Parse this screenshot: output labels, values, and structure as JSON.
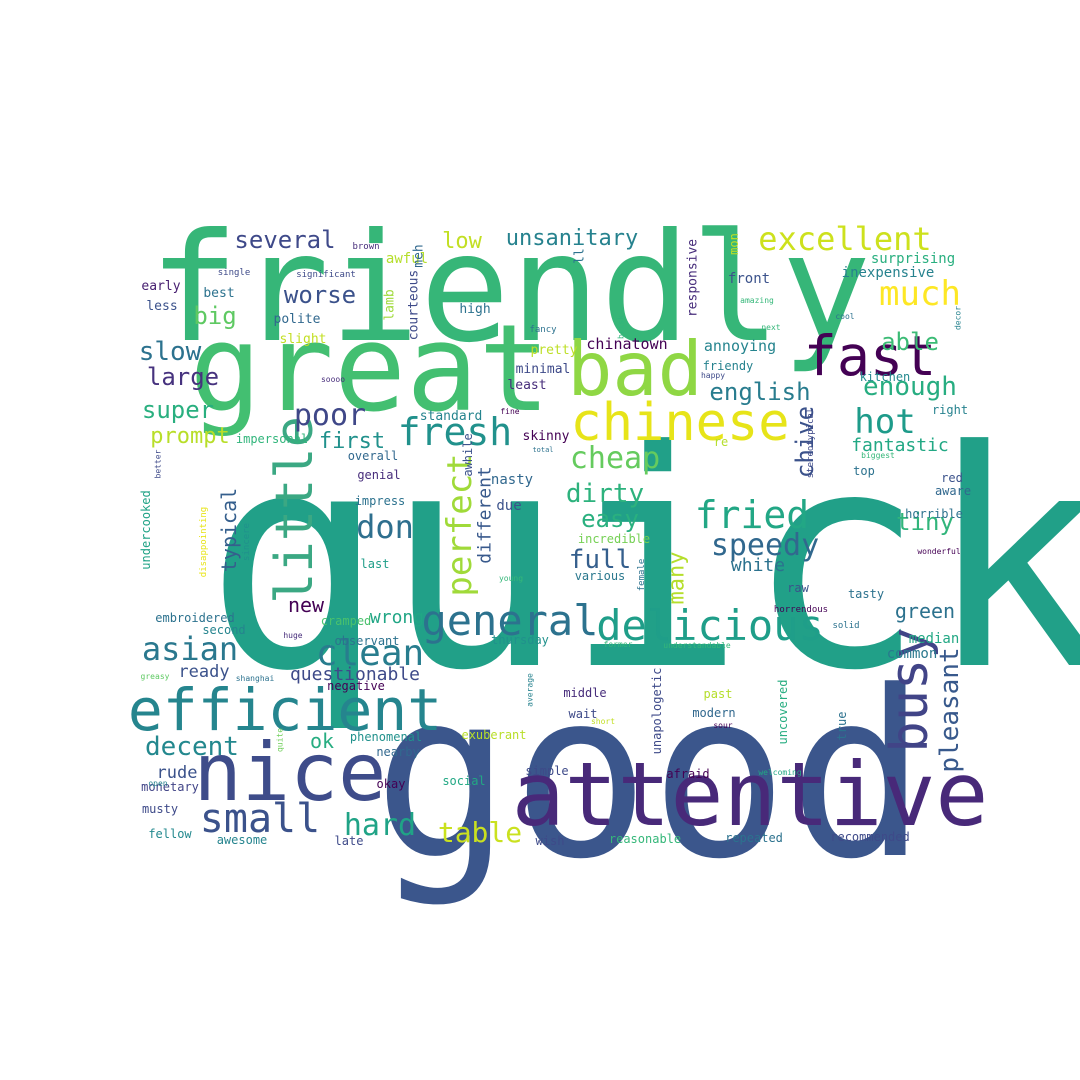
{
  "cloud": {
    "words": [
      {
        "text": "quick",
        "color": "#21a088"
      },
      {
        "text": "good",
        "color": "#3b568c"
      },
      {
        "text": "friendly",
        "color": "#36b678"
      },
      {
        "text": "great",
        "color": "#43bf71"
      },
      {
        "text": "attentive",
        "color": "#482979"
      },
      {
        "text": "nice",
        "color": "#3e4c8a"
      },
      {
        "text": "efficient",
        "color": "#25858e"
      },
      {
        "text": "bad",
        "color": "#8fd744"
      },
      {
        "text": "fast",
        "color": "#440154"
      },
      {
        "text": "chinese",
        "color": "#e7e419"
      },
      {
        "text": "delicious",
        "color": "#1f9e89"
      },
      {
        "text": "busy",
        "color": "#414487"
      },
      {
        "text": "excellent",
        "color": "#cde11d"
      },
      {
        "text": "much",
        "color": "#fde725"
      },
      {
        "text": "little",
        "color": "#3ba883"
      },
      {
        "text": "general",
        "color": "#2c728e"
      },
      {
        "text": "small",
        "color": "#3b528b"
      },
      {
        "text": "fried",
        "color": "#22a785"
      },
      {
        "text": "fresh",
        "color": "#21918c"
      },
      {
        "text": "speedy",
        "color": "#31688e"
      },
      {
        "text": "hot",
        "color": "#1e9b8a"
      },
      {
        "text": "clean",
        "color": "#287d8e"
      },
      {
        "text": "perfect",
        "color": "#a0da39"
      },
      {
        "text": "asian",
        "color": "#2a788e"
      },
      {
        "text": "poor",
        "color": "#3f4788"
      },
      {
        "text": "don",
        "color": "#2e6f8e"
      },
      {
        "text": "table",
        "color": "#cae11f"
      },
      {
        "text": "hard",
        "color": "#20a386"
      },
      {
        "text": "pleasant",
        "color": "#38598c"
      },
      {
        "text": "cheap",
        "color": "#65cb5e"
      },
      {
        "text": "dirty",
        "color": "#2db27d"
      },
      {
        "text": "full",
        "color": "#355f8d"
      },
      {
        "text": "easy",
        "color": "#2ab07f"
      },
      {
        "text": "decent",
        "color": "#23888e"
      },
      {
        "text": "enough",
        "color": "#27ad81"
      },
      {
        "text": "english",
        "color": "#287c8e"
      },
      {
        "text": "tiny",
        "color": "#31b57b"
      },
      {
        "text": "able",
        "color": "#3bbb75"
      },
      {
        "text": "slow",
        "color": "#2c728e"
      },
      {
        "text": "large",
        "color": "#46327e"
      },
      {
        "text": "super",
        "color": "#29af7f"
      },
      {
        "text": "prompt",
        "color": "#b8de29"
      },
      {
        "text": "worse",
        "color": "#3b528b"
      },
      {
        "text": "big",
        "color": "#5ec962"
      },
      {
        "text": "several",
        "color": "#3e4989"
      },
      {
        "text": "low",
        "color": "#c2df23"
      },
      {
        "text": "unsanitary",
        "color": "#26828e"
      },
      {
        "text": "first",
        "color": "#21918c"
      },
      {
        "text": "chive",
        "color": "#3b528b"
      },
      {
        "text": "fantastic",
        "color": "#22a884"
      },
      {
        "text": "new",
        "color": "#440154"
      },
      {
        "text": "green",
        "color": "#2c728e"
      },
      {
        "text": "ok",
        "color": "#27ad81"
      },
      {
        "text": "many",
        "color": "#b5de2b"
      },
      {
        "text": "questionable",
        "color": "#3e4a89"
      },
      {
        "text": "typical",
        "color": "#355f8d"
      },
      {
        "text": "different",
        "color": "#38598c"
      },
      {
        "text": "wrong",
        "color": "#21a685"
      },
      {
        "text": "white",
        "color": "#2c728e"
      },
      {
        "text": "ready",
        "color": "#3b528b"
      },
      {
        "text": "rude",
        "color": "#3b528b"
      },
      {
        "text": "common",
        "color": "#2a788e"
      },
      {
        "text": "median",
        "color": "#22a884"
      },
      {
        "text": "chinatown",
        "color": "#440154"
      },
      {
        "text": "annoying",
        "color": "#25848e"
      },
      {
        "text": "nasty",
        "color": "#31688e"
      },
      {
        "text": "due",
        "color": "#3b528b"
      },
      {
        "text": "surprising",
        "color": "#29af7f"
      },
      {
        "text": "inexpensive",
        "color": "#26828e"
      },
      {
        "text": "front",
        "color": "#3b528b"
      },
      {
        "text": "awful",
        "color": "#b5de2b"
      },
      {
        "text": "meh",
        "color": "#31688e"
      },
      {
        "text": "ll",
        "color": "#2c728e"
      },
      {
        "text": "mon",
        "color": "#c2df23"
      },
      {
        "text": "responsive",
        "color": "#472d7b"
      },
      {
        "text": "courteous",
        "color": "#3e4a89"
      },
      {
        "text": "lamb",
        "color": "#9fda3a"
      },
      {
        "text": "high",
        "color": "#2c728e"
      },
      {
        "text": "early",
        "color": "#482071"
      },
      {
        "text": "best",
        "color": "#2c728e"
      },
      {
        "text": "less",
        "color": "#3b528b"
      },
      {
        "text": "polite",
        "color": "#31688e"
      },
      {
        "text": "slight",
        "color": "#c2df23"
      },
      {
        "text": "pretty",
        "color": "#bddf26"
      },
      {
        "text": "minimal",
        "color": "#3e4a89"
      },
      {
        "text": "least",
        "color": "#472d7b"
      },
      {
        "text": "standard",
        "color": "#25848e"
      },
      {
        "text": "skinny",
        "color": "#440154"
      },
      {
        "text": "overall",
        "color": "#31688e"
      },
      {
        "text": "genial",
        "color": "#472d7b"
      },
      {
        "text": "impress",
        "color": "#2c728e"
      },
      {
        "text": "awhile",
        "color": "#3b528b"
      },
      {
        "text": "impersonal",
        "color": "#31b57b"
      },
      {
        "text": "friendy",
        "color": "#26828e"
      },
      {
        "text": "kitchen",
        "color": "#23898e"
      },
      {
        "text": "top",
        "color": "#2c728e"
      },
      {
        "text": "red",
        "color": "#3b528b"
      },
      {
        "text": "aware",
        "color": "#31688e"
      },
      {
        "text": "horrible",
        "color": "#2c728e"
      },
      {
        "text": "right",
        "color": "#26828e"
      },
      {
        "text": "incredible",
        "color": "#75d054"
      },
      {
        "text": "last",
        "color": "#1f9e89"
      },
      {
        "text": "various",
        "color": "#2a788e"
      },
      {
        "text": "raw",
        "color": "#3b528b"
      },
      {
        "text": "tasty",
        "color": "#2c728e"
      },
      {
        "text": "embroidered",
        "color": "#2c728e"
      },
      {
        "text": "second",
        "color": "#25848e"
      },
      {
        "text": "cramped",
        "color": "#4ac16d"
      },
      {
        "text": "observant",
        "color": "#2c728e"
      },
      {
        "text": "thursday",
        "color": "#21918c"
      },
      {
        "text": "negative",
        "color": "#440154"
      },
      {
        "text": "past",
        "color": "#b5de2b"
      },
      {
        "text": "modern",
        "color": "#31688e"
      },
      {
        "text": "middle",
        "color": "#472d7b"
      },
      {
        "text": "wait",
        "color": "#3e4a89"
      },
      {
        "text": "true",
        "color": "#2c728e"
      },
      {
        "text": "uncovered",
        "color": "#27ad81"
      },
      {
        "text": "unapologetic",
        "color": "#3e4a89"
      },
      {
        "text": "exuberant",
        "color": "#b8de29"
      },
      {
        "text": "phenomenal",
        "color": "#21918c"
      },
      {
        "text": "nearby",
        "color": "#31688e"
      },
      {
        "text": "social",
        "color": "#22a884"
      },
      {
        "text": "simple",
        "color": "#3e4a89"
      },
      {
        "text": "afraid",
        "color": "#440154"
      },
      {
        "text": "okay",
        "color": "#440154"
      },
      {
        "text": "monetary",
        "color": "#414487"
      },
      {
        "text": "musty",
        "color": "#3e4a89"
      },
      {
        "text": "fellow",
        "color": "#23898e"
      },
      {
        "text": "awesome",
        "color": "#25848e"
      },
      {
        "text": "late",
        "color": "#3e4a89"
      },
      {
        "text": "wish",
        "color": "#3e4a89"
      },
      {
        "text": "reasonable",
        "color": "#35b779"
      },
      {
        "text": "repeated",
        "color": "#2c728e"
      },
      {
        "text": "recommended",
        "color": "#3e4a89"
      },
      {
        "text": "undercooked",
        "color": "#20a386"
      },
      {
        "text": "disappointing",
        "color": "#e7e419"
      },
      {
        "text": "sincere",
        "color": "#21918c"
      },
      {
        "text": "greasy",
        "color": "#5ec962"
      },
      {
        "text": "shanghai",
        "color": "#2c728e"
      },
      {
        "text": "huge",
        "color": "#472d7b"
      },
      {
        "text": "quite",
        "color": "#6ece58"
      },
      {
        "text": "average",
        "color": "#26828e"
      },
      {
        "text": "former",
        "color": "#35b779"
      },
      {
        "text": "understandable",
        "color": "#35b779"
      },
      {
        "text": "short",
        "color": "#c2df23"
      },
      {
        "text": "sour",
        "color": "#440154"
      },
      {
        "text": "welcoming",
        "color": "#22a884"
      },
      {
        "text": "young",
        "color": "#35b779"
      },
      {
        "text": "female",
        "color": "#2c728e"
      },
      {
        "text": "horrendous",
        "color": "#440154"
      },
      {
        "text": "solid",
        "color": "#2c728e"
      },
      {
        "text": "brown",
        "color": "#472d7b"
      },
      {
        "text": "single",
        "color": "#3e4a89"
      },
      {
        "text": "significant",
        "color": "#3e4a89"
      },
      {
        "text": "soooo",
        "color": "#472d7b"
      },
      {
        "text": "fancy",
        "color": "#2c728e"
      },
      {
        "text": "brisk",
        "color": "#31b57b"
      },
      {
        "text": "happy",
        "color": "#3e4a89"
      },
      {
        "text": "amazing",
        "color": "#35b779"
      },
      {
        "text": "next",
        "color": "#35b779"
      },
      {
        "text": "cool",
        "color": "#2c728e"
      },
      {
        "text": "decor",
        "color": "#26828e"
      },
      {
        "text": "stereotypical",
        "color": "#3e4a89"
      },
      {
        "text": "biggest",
        "color": "#35b779"
      },
      {
        "text": "wonderful",
        "color": "#440154"
      },
      {
        "text": "fine",
        "color": "#440154"
      },
      {
        "text": "total",
        "color": "#2c728e"
      },
      {
        "text": "re",
        "color": "#b5de2b"
      },
      {
        "text": "better",
        "color": "#3e4a89"
      },
      {
        "text": "open",
        "color": "#26828e"
      }
    ]
  }
}
